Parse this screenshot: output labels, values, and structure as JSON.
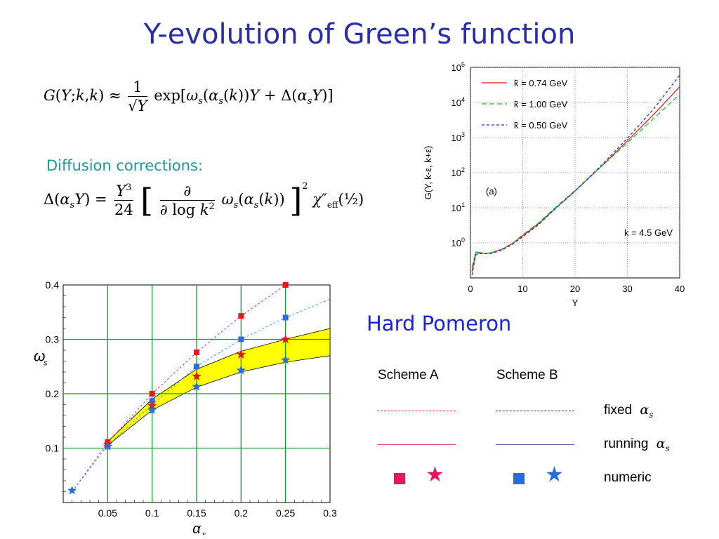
{
  "slide": {
    "title": "Y-evolution of Green’s function",
    "diffusion_label": "Diffusion corrections:",
    "hard_pomeron": "Hard Pomeron"
  },
  "equations": {
    "green": {
      "lhs": "G(Y;k,k) ≈",
      "frac_num": "1",
      "frac_den": "√Y",
      "rhs": "exp[ω_s(α_s(k))Y + Δ(α_sY)]"
    },
    "delta": {
      "lhs": "Δ(α_sY) =",
      "frac_num": "Y³",
      "frac_den": "24",
      "bracket_num": "∂",
      "bracket_den": "∂ log k²",
      "rhs": "ω_s(α_s(k))",
      "tail": "χ″_eff(½)"
    }
  },
  "legend": {
    "scheme_a": "Scheme A",
    "scheme_b": "Scheme B",
    "fixed": "fixed",
    "running": "running",
    "numeric": "numeric",
    "alpha_symbol": "α",
    "alpha_sub": "s",
    "colors": {
      "scheme_a": "#e8175d",
      "scheme_b": "#1f2aa8",
      "numeric_a": "#e8175d",
      "numeric_b": "#2a6de0"
    }
  },
  "chart_data": [
    {
      "type": "line",
      "panel_label": "(a)",
      "annotation": "k = 4.5 GeV",
      "xlabel": "Y",
      "ylabel": "G(Y, k-ε, k+ε)",
      "xlim": [
        0,
        40
      ],
      "ylim": [
        0.1,
        100000
      ],
      "yscale": "log",
      "grid": "dotted",
      "x_ticks": [
        "0",
        "10",
        "20",
        "30",
        "40"
      ],
      "y_ticks": [
        {
          "base": "10",
          "exp": "0",
          "value": 1
        },
        {
          "base": "10",
          "exp": "1",
          "value": 10
        },
        {
          "base": "10",
          "exp": "2",
          "value": 100
        },
        {
          "base": "10",
          "exp": "3",
          "value": 1000
        },
        {
          "base": "10",
          "exp": "4",
          "value": 10000
        },
        {
          "base": "10",
          "exp": "5",
          "value": 100000
        }
      ],
      "legend_position": "top-left",
      "series": [
        {
          "name": "k̄ = 0.74 GeV",
          "color": "#e0201b",
          "dash": "",
          "x": [
            0.3,
            1,
            2,
            3,
            4,
            6,
            8,
            10,
            13,
            16,
            20,
            25,
            30,
            35,
            40
          ],
          "y": [
            0.15,
            0.5,
            0.52,
            0.5,
            0.52,
            0.65,
            0.95,
            1.6,
            3.5,
            9,
            30,
            150,
            800,
            4500,
            28000
          ]
        },
        {
          "name": "k̄ = 1.00 GeV",
          "color": "#22c02a",
          "dash": "7,4",
          "x": [
            0.3,
            1,
            2,
            3,
            4,
            6,
            8,
            10,
            13,
            16,
            20,
            25,
            30,
            35,
            40
          ],
          "y": [
            0.2,
            0.55,
            0.53,
            0.5,
            0.53,
            0.66,
            0.97,
            1.7,
            3.7,
            9.5,
            31,
            150,
            700,
            3500,
            17000
          ]
        },
        {
          "name": "k̄ = 0.50 GeV",
          "color": "#1f33d6",
          "dash": "4,3",
          "x": [
            0.3,
            1,
            2,
            3,
            4,
            6,
            8,
            10,
            13,
            16,
            20,
            25,
            30,
            35,
            40
          ],
          "y": [
            0.12,
            0.45,
            0.5,
            0.49,
            0.5,
            0.62,
            0.9,
            1.5,
            3.3,
            8.7,
            30,
            160,
            950,
            6500,
            60000
          ]
        }
      ]
    },
    {
      "type": "scatter",
      "xlabel": "α_s",
      "ylabel": "ω_s",
      "xlim": [
        0,
        0.3
      ],
      "ylim": [
        0,
        0.4
      ],
      "grid": true,
      "x_ticks": [
        "0.05",
        "0.1",
        "0.15",
        "0.2",
        "0.25",
        "0.3"
      ],
      "y_ticks": [
        "0.1",
        "0.2",
        "0.3",
        "0.4"
      ],
      "band": {
        "color": "#ffff00",
        "x": [
          0.05,
          0.1,
          0.15,
          0.2,
          0.25,
          0.3
        ],
        "lower": [
          0.105,
          0.17,
          0.212,
          0.24,
          0.258,
          0.27
        ],
        "upper": [
          0.112,
          0.19,
          0.245,
          0.278,
          0.3,
          0.32
        ]
      },
      "series": [
        {
          "name": "Scheme A fixed",
          "style": "dashed-line",
          "color": "#e8175d",
          "x": [
            0.01,
            0.05,
            0.1,
            0.15,
            0.2,
            0.25
          ],
          "y": [
            0.02,
            0.11,
            0.2,
            0.276,
            0.343,
            0.4
          ]
        },
        {
          "name": "Scheme B fixed",
          "style": "dashed-line",
          "color": "#2a9ad8",
          "x": [
            0.01,
            0.05,
            0.1,
            0.15,
            0.2,
            0.25,
            0.3
          ],
          "y": [
            0.02,
            0.105,
            0.18,
            0.25,
            0.3,
            0.34,
            0.374
          ]
        },
        {
          "name": "Scheme A numeric",
          "style": "square",
          "color": "#e8171d",
          "x": [
            0.05,
            0.1,
            0.15,
            0.2,
            0.25
          ],
          "y": [
            0.111,
            0.2,
            0.276,
            0.343,
            0.4
          ]
        },
        {
          "name": "Scheme B numeric",
          "style": "square",
          "color": "#2a6de0",
          "x": [
            0.05,
            0.1,
            0.15,
            0.2,
            0.25
          ],
          "y": [
            0.105,
            0.187,
            0.25,
            0.3,
            0.34
          ]
        },
        {
          "name": "Scheme A running",
          "style": "star",
          "color": "#e8171d",
          "x": [
            0.05,
            0.1,
            0.15,
            0.2,
            0.25
          ],
          "y": [
            0.107,
            0.178,
            0.232,
            0.272,
            0.3
          ]
        },
        {
          "name": "Scheme B running",
          "style": "star",
          "color": "#2a6de0",
          "x": [
            0.01,
            0.05,
            0.1,
            0.15,
            0.2,
            0.25
          ],
          "y": [
            0.022,
            0.103,
            0.17,
            0.213,
            0.243,
            0.262
          ]
        }
      ]
    }
  ]
}
